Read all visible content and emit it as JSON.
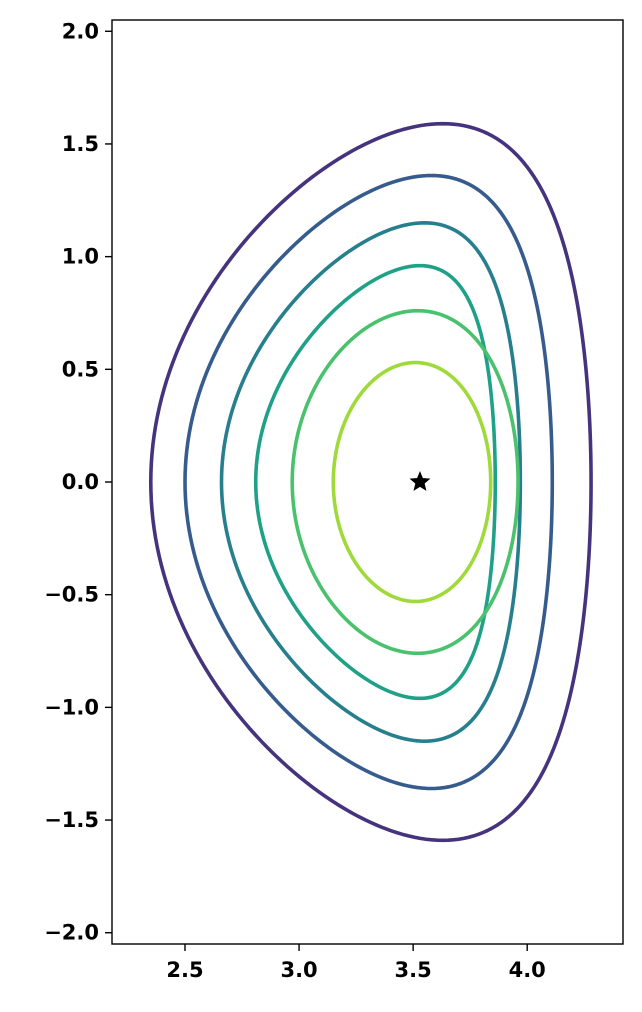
{
  "chart_data": {
    "type": "contour",
    "title": "",
    "xlabel": "",
    "ylabel": "",
    "xlim": [
      2.18,
      4.42
    ],
    "ylim": [
      -2.05,
      2.05
    ],
    "grid": false,
    "legend": "none",
    "x_ticks": [
      2.5,
      3.0,
      3.5,
      4.0
    ],
    "x_tick_labels": [
      "2.5",
      "3.0",
      "3.5",
      "4.0"
    ],
    "y_ticks": [
      2.0,
      1.5,
      1.0,
      0.5,
      0.0,
      -0.5,
      -1.0,
      -1.5,
      -2.0
    ],
    "y_tick_labels": [
      "2.0",
      "1.5",
      "1.0",
      "0.5",
      "0.0",
      "−0.5",
      "−1.0",
      "−1.5",
      "−2.0"
    ],
    "magnetic_axis": {
      "x": 3.53,
      "y": 0.0,
      "marker": "star",
      "color": "#000000"
    },
    "contours": [
      {
        "color": "#46337e",
        "r_min": 2.35,
        "r_max": 4.28,
        "z_max": 1.59,
        "r_at_zmax": 3.63
      },
      {
        "color": "#365c8d",
        "r_min": 2.5,
        "r_max": 4.11,
        "z_max": 1.36,
        "r_at_zmax": 3.58
      },
      {
        "color": "#277f8e",
        "r_min": 2.66,
        "r_max": 3.97,
        "z_max": 1.15,
        "r_at_zmax": 3.55
      },
      {
        "color": "#1fa187",
        "r_min": 2.81,
        "r_max": 3.86,
        "z_max": 0.96,
        "r_at_zmax": 3.53
      },
      {
        "color": "#4ac16d",
        "r_min": 2.97,
        "r_max": 3.96,
        "z_max": 0.76,
        "r_at_zmax": 3.52
      },
      {
        "color": "#9fda3a",
        "r_min": 3.15,
        "r_max": 3.84,
        "z_max": 0.53,
        "r_at_zmax": 3.51
      }
    ]
  }
}
